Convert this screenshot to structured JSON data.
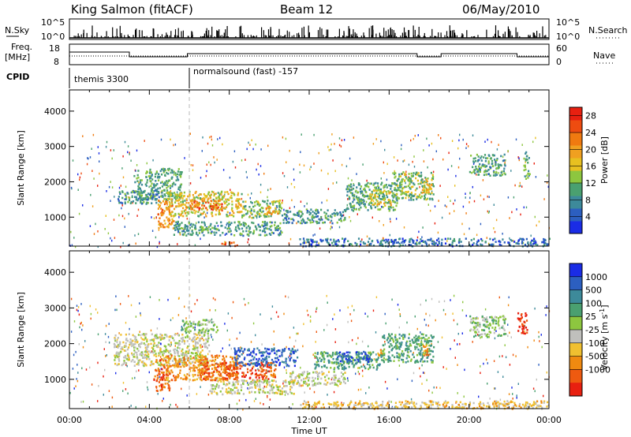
{
  "header": {
    "station": "King Salmon (fitACF)",
    "beam": "Beam 12",
    "date": "06/May/2010"
  },
  "nsky_panel": {
    "left_label": "N.Sky",
    "left_ticks": [
      "10^5",
      "10^0"
    ],
    "right_label": "N.Search",
    "right_ticks": [
      "10^5",
      "10^0"
    ]
  },
  "freq_panel": {
    "left_label_line1": "Freq.",
    "left_label_line2": "[MHz]",
    "left_ticks": [
      "18",
      "8"
    ],
    "right_label": "Nave",
    "right_ticks": [
      "60",
      "0"
    ]
  },
  "cpid": {
    "label": "CPID",
    "modes": [
      {
        "name": "themis 3300",
        "start_hour": 0,
        "end_hour": 6
      },
      {
        "name": "normalsound (fast) -157",
        "start_hour": 6,
        "end_hour": 24
      }
    ]
  },
  "x_axis": {
    "label": "Time UT",
    "ticks": [
      "00:00",
      "04:00",
      "08:00",
      "12:00",
      "16:00",
      "20:00",
      "00:00"
    ],
    "range_hours": [
      0,
      24
    ]
  },
  "chart_data": [
    {
      "type": "heatmap",
      "name": "power",
      "ylabel": "Slant Range [km]",
      "yticks": [
        "1000",
        "2000",
        "3000",
        "4000"
      ],
      "ylim": [
        180,
        4600
      ],
      "colorbar": {
        "label": "Power [dB]",
        "ticks": [
          "4",
          "8",
          "12",
          "16",
          "20",
          "24",
          "28"
        ],
        "range": [
          0,
          30
        ],
        "colors": [
          "#1a2ce6",
          "#2c5fc0",
          "#3d8a9a",
          "#4aa070",
          "#8dc63f",
          "#e8c020",
          "#f0a020",
          "#f07a10",
          "#ee4c10",
          "#e82010"
        ]
      },
      "regions": [
        {
          "t0": 3.2,
          "t1": 5.6,
          "r0": 1500,
          "r1": 2400,
          "level": 10
        },
        {
          "t0": 2.4,
          "t1": 4.6,
          "r0": 1400,
          "r1": 1800,
          "level": 8
        },
        {
          "t0": 4.8,
          "t1": 8.6,
          "r0": 1050,
          "r1": 1750,
          "level": 16
        },
        {
          "t0": 5.8,
          "t1": 7.6,
          "r0": 1200,
          "r1": 1500,
          "level": 24
        },
        {
          "t0": 4.4,
          "t1": 5.2,
          "r0": 700,
          "r1": 1500,
          "level": 22
        },
        {
          "t0": 8.6,
          "t1": 10.6,
          "r0": 1000,
          "r1": 1500,
          "level": 12
        },
        {
          "t0": 9.8,
          "t1": 10.4,
          "r0": 1100,
          "r1": 1350,
          "level": 20
        },
        {
          "t0": 5.2,
          "t1": 10.6,
          "r0": 500,
          "r1": 900,
          "level": 9
        },
        {
          "t0": 10.6,
          "t1": 13.8,
          "r0": 850,
          "r1": 1250,
          "level": 8
        },
        {
          "t0": 13.8,
          "t1": 16.4,
          "r0": 1200,
          "r1": 2000,
          "level": 10
        },
        {
          "t0": 15.0,
          "t1": 16.1,
          "r0": 1350,
          "r1": 1800,
          "level": 16
        },
        {
          "t0": 16.2,
          "t1": 18.2,
          "r0": 1500,
          "r1": 2300,
          "level": 12
        },
        {
          "t0": 17.6,
          "t1": 18.2,
          "r0": 1700,
          "r1": 2100,
          "level": 18
        },
        {
          "t0": 20.0,
          "t1": 21.8,
          "r0": 2200,
          "r1": 2800,
          "level": 9
        },
        {
          "t0": 22.7,
          "t1": 23.0,
          "r0": 2100,
          "r1": 2900,
          "level": 10
        },
        {
          "t0": 7.6,
          "t1": 8.4,
          "r0": 200,
          "r1": 320,
          "level": 26
        },
        {
          "t0": 11.5,
          "t1": 24.0,
          "r0": 200,
          "r1": 420,
          "level": 5
        }
      ]
    },
    {
      "type": "heatmap",
      "name": "velocity",
      "ylabel": "Slant Range [km]",
      "yticks": [
        "1000",
        "2000",
        "3000",
        "4000"
      ],
      "ylim": [
        180,
        4600
      ],
      "colorbar": {
        "label": "Velocity [m s^-1]",
        "ticks": [
          "1000",
          "500",
          "100",
          "25",
          "-25",
          "-100",
          "-500",
          "-1000"
        ],
        "colors": [
          "#1a2ce6",
          "#2c5fc0",
          "#3d8a9a",
          "#4aa070",
          "#8dc63f",
          "#c0c0bc",
          "#f0c030",
          "#f08a10",
          "#ee5a10",
          "#e82010"
        ]
      },
      "regions": [
        {
          "t0": 2.2,
          "t1": 7.0,
          "r0": 1400,
          "r1": 2300,
          "level": 5
        },
        {
          "t0": 4.2,
          "t1": 5.0,
          "r0": 700,
          "r1": 1600,
          "level": 8
        },
        {
          "t0": 4.8,
          "t1": 8.4,
          "r0": 1000,
          "r1": 1700,
          "level": 7
        },
        {
          "t0": 6.5,
          "t1": 10.3,
          "r0": 1000,
          "r1": 1500,
          "level": 8
        },
        {
          "t0": 7.0,
          "t1": 11.2,
          "r0": 600,
          "r1": 1000,
          "level": 5
        },
        {
          "t0": 11.0,
          "t1": 13.8,
          "r0": 850,
          "r1": 1250,
          "level": 5
        },
        {
          "t0": 12.2,
          "t1": 15.6,
          "r0": 1300,
          "r1": 1800,
          "level": 3
        },
        {
          "t0": 13.2,
          "t1": 15.0,
          "r0": 1500,
          "r1": 1800,
          "level": 1
        },
        {
          "t0": 15.2,
          "t1": 15.7,
          "r0": 1650,
          "r1": 1850,
          "level": 7
        },
        {
          "t0": 15.6,
          "t1": 18.2,
          "r0": 1500,
          "r1": 2300,
          "level": 3
        },
        {
          "t0": 17.6,
          "t1": 18.0,
          "r0": 1700,
          "r1": 2000,
          "level": 7
        },
        {
          "t0": 20.0,
          "t1": 21.8,
          "r0": 2200,
          "r1": 2800,
          "level": 4
        },
        {
          "t0": 22.4,
          "t1": 22.9,
          "r0": 2300,
          "r1": 2900,
          "level": 9
        },
        {
          "t0": 8.2,
          "t1": 11.4,
          "r0": 1400,
          "r1": 1900,
          "level": 1
        },
        {
          "t0": 5.6,
          "t1": 7.4,
          "r0": 2300,
          "r1": 2700,
          "level": 4
        },
        {
          "t0": 11.5,
          "t1": 24.0,
          "r0": 200,
          "r1": 420,
          "level": 6
        }
      ]
    }
  ]
}
